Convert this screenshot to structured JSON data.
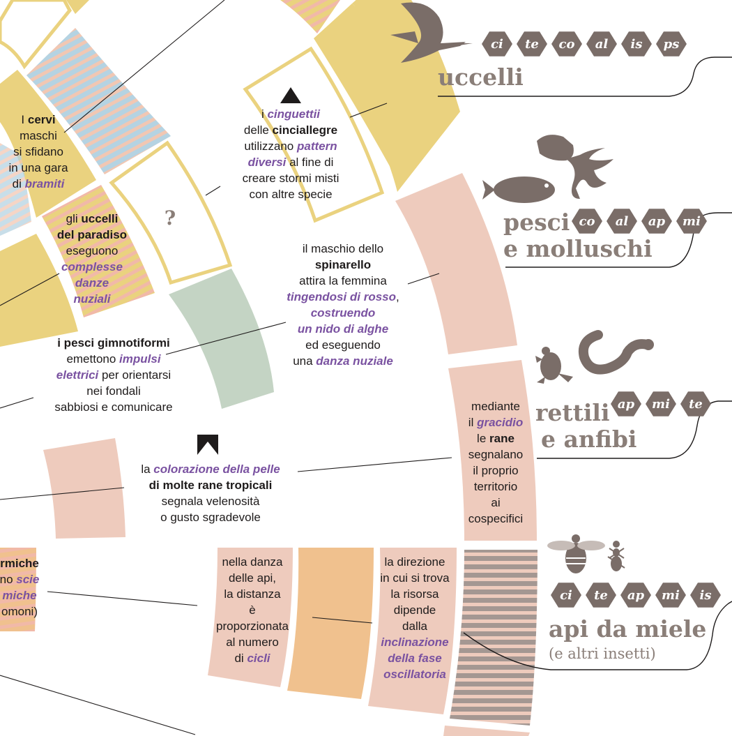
{
  "colors": {
    "yellow": "#ead27f",
    "pink": "#eecbbd",
    "green": "#c4d4c4",
    "orange": "#f0c18e",
    "blue": "#b5d3e2",
    "gray": "#a49792",
    "text_accent": "#7a52a1",
    "icon": "#7a6d68",
    "label": "#8a7e78"
  },
  "groups": [
    {
      "id": "uccelli",
      "title_lines": [
        "uccelli"
      ],
      "subtitle": "",
      "tags": [
        "ci",
        "te",
        "co",
        "al",
        "is",
        "ps"
      ],
      "icons": [
        "swallow-icon"
      ]
    },
    {
      "id": "pesci",
      "title_lines": [
        "pesci",
        "e molluschi"
      ],
      "subtitle": "",
      "tags": [
        "co",
        "al",
        "ap",
        "mi"
      ],
      "icons": [
        "fish-icon",
        "octopus-icon"
      ]
    },
    {
      "id": "rettili",
      "title_lines": [
        "rettili",
        "e anfibi"
      ],
      "subtitle": "",
      "tags": [
        "ap",
        "mi",
        "te"
      ],
      "icons": [
        "frog-icon",
        "snake-icon"
      ]
    },
    {
      "id": "api",
      "title_lines": [
        "api da miele"
      ],
      "subtitle": "(e altri insetti)",
      "tags": [
        "ci",
        "te",
        "ap",
        "mi",
        "is"
      ],
      "icons": [
        "bee-icon",
        "ant-icon"
      ]
    }
  ],
  "annotations": {
    "cervi": [
      [
        {
          "t": "I "
        },
        {
          "t": "cervi",
          "s": "b"
        }
      ],
      [
        {
          "t": "maschi"
        }
      ],
      [
        {
          "t": "si sfidano"
        }
      ],
      [
        {
          "t": "in una gara"
        }
      ],
      [
        {
          "t": "di "
        },
        {
          "t": "bramiti",
          "s": "em"
        }
      ]
    ],
    "cinciallegre": [
      [
        {
          "t": "i "
        },
        {
          "t": "cinguettii",
          "s": "em"
        }
      ],
      [
        {
          "t": "delle "
        },
        {
          "t": "cinciallegre",
          "s": "b"
        }
      ],
      [
        {
          "t": "utilizzano "
        },
        {
          "t": "pattern",
          "s": "em"
        }
      ],
      [
        {
          "t": "diversi",
          "s": "em"
        },
        {
          "t": " al fine di"
        }
      ],
      [
        {
          "t": "creare stormi misti"
        }
      ],
      [
        {
          "t": "con altre specie"
        }
      ]
    ],
    "uccelli_paradiso": [
      [
        {
          "t": "gli "
        },
        {
          "t": "uccelli",
          "s": "b"
        }
      ],
      [
        {
          "t": "del paradiso",
          "s": "b"
        }
      ],
      [
        {
          "t": "eseguono"
        }
      ],
      [
        {
          "t": "complesse",
          "s": "em"
        }
      ],
      [
        {
          "t": "danze",
          "s": "em"
        }
      ],
      [
        {
          "t": "nuziali",
          "s": "em"
        }
      ]
    ],
    "spinarello": [
      [
        {
          "t": "il maschio dello"
        }
      ],
      [
        {
          "t": "spinarello",
          "s": "b"
        }
      ],
      [
        {
          "t": "attira la femmina"
        }
      ],
      [
        {
          "t": "tingendosi di rosso",
          "s": "em"
        },
        {
          "t": ","
        }
      ],
      [
        {
          "t": "costruendo",
          "s": "em"
        }
      ],
      [
        {
          "t": "un nido di alghe",
          "s": "em"
        }
      ],
      [
        {
          "t": "ed eseguendo"
        }
      ],
      [
        {
          "t": "una "
        },
        {
          "t": "danza nuziale",
          "s": "em"
        }
      ]
    ],
    "gimnotiformi": [
      [
        {
          "t": "i pesci gimnotiformi",
          "s": "b"
        }
      ],
      [
        {
          "t": "emettono "
        },
        {
          "t": "impulsi",
          "s": "em"
        }
      ],
      [
        {
          "t": "elettrici",
          "s": "em"
        },
        {
          "t": " per orientarsi"
        }
      ],
      [
        {
          "t": "nei fondali"
        }
      ],
      [
        {
          "t": "sabbiosi e comunicare"
        }
      ]
    ],
    "rane_gracidio": [
      [
        {
          "t": "mediante"
        }
      ],
      [
        {
          "t": "il "
        },
        {
          "t": "gracidio",
          "s": "em"
        }
      ],
      [
        {
          "t": "le "
        },
        {
          "t": "rane",
          "s": "b"
        }
      ],
      [
        {
          "t": "segnalano"
        }
      ],
      [
        {
          "t": "il proprio"
        }
      ],
      [
        {
          "t": "territorio"
        }
      ],
      [
        {
          "t": "ai"
        }
      ],
      [
        {
          "t": "cospecifici"
        }
      ]
    ],
    "rane_tropicali": [
      [
        {
          "t": "la "
        },
        {
          "t": "colorazione della pelle",
          "s": "em"
        }
      ],
      [
        {
          "t": "di molte rane tropicali",
          "s": "b"
        }
      ],
      [
        {
          "t": "segnala velenosità"
        }
      ],
      [
        {
          "t": "o gusto sgradevole"
        }
      ]
    ],
    "formiche": [
      [
        {
          "t": "rmiche",
          "s": "b"
        }
      ],
      [
        {
          "t": "no "
        },
        {
          "t": "scie",
          "s": "em"
        }
      ],
      [
        {
          "t": "miche",
          "s": "em"
        }
      ],
      [
        {
          "t": "omoni)"
        }
      ]
    ],
    "api_distanza": [
      [
        {
          "t": "nella danza"
        }
      ],
      [
        {
          "t": "delle api,"
        }
      ],
      [
        {
          "t": "la distanza"
        }
      ],
      [
        {
          "t": "è"
        }
      ],
      [
        {
          "t": "proporzionata"
        }
      ],
      [
        {
          "t": "al numero"
        }
      ],
      [
        {
          "t": "di "
        },
        {
          "t": "cicli",
          "s": "em"
        }
      ]
    ],
    "api_direzione": [
      [
        {
          "t": "la direzione"
        }
      ],
      [
        {
          "t": "in cui si trova"
        }
      ],
      [
        {
          "t": "la risorsa"
        }
      ],
      [
        {
          "t": "dipende"
        }
      ],
      [
        {
          "t": "dalla"
        }
      ],
      [
        {
          "t": "inclinazione",
          "s": "em"
        }
      ],
      [
        {
          "t": "della fase",
          "s": "em"
        }
      ],
      [
        {
          "t": "oscillatoria",
          "s": "em"
        }
      ]
    ]
  },
  "question_mark": "?"
}
